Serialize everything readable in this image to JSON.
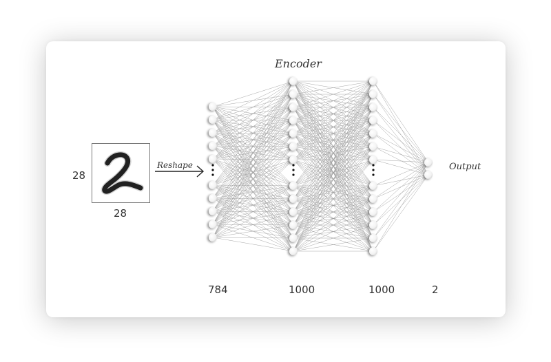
{
  "diagram": {
    "title": "Encoder",
    "reshape_label": "Reshape",
    "output_label": "Output",
    "input_dims": {
      "height": "28",
      "width": "28"
    },
    "layers": [
      {
        "size_label": "784"
      },
      {
        "size_label": "1000"
      },
      {
        "size_label": "1000"
      },
      {
        "size_label": "2"
      }
    ]
  }
}
